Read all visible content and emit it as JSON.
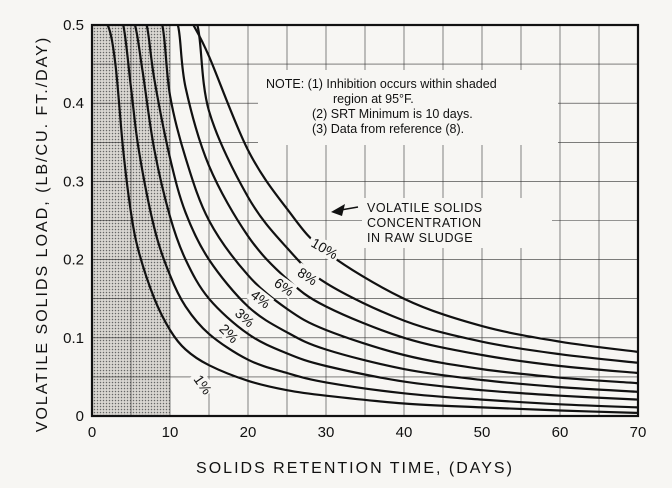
{
  "chart_data": {
    "type": "line",
    "title": "",
    "xlabel": "SOLIDS RETENTION TIME, (DAYS)",
    "ylabel": "VOLATILE SOLIDS LOAD, (LB/CU. FT./DAY)",
    "xlim": [
      0,
      70
    ],
    "ylim": [
      0,
      0.5
    ],
    "x_ticks": [
      "0",
      "10",
      "20",
      "30",
      "40",
      "50",
      "60",
      "70"
    ],
    "y_ticks": [
      "0",
      "0.1",
      "0.2",
      "0.3",
      "0.4",
      "0.5"
    ],
    "grid": true,
    "shaded_region": {
      "x_range": [
        0,
        10
      ]
    },
    "note": {
      "lines": [
        "NOTE:  (1) Inhibition occurs within shaded",
        "region at 95°F.",
        "(2) SRT Minimum is 10 days.",
        "(3) Data from reference (8)."
      ]
    },
    "callout": {
      "lines": [
        "VOLATILE SOLIDS",
        "CONCENTRATION",
        "IN RAW SLUDGE"
      ]
    },
    "series": [
      {
        "name": "",
        "label": "1%",
        "x": [
          0.5,
          2,
          3,
          4,
          5,
          6,
          8,
          10,
          12,
          15,
          20,
          25,
          30,
          40,
          50,
          60,
          70
        ],
        "y": [
          0.5,
          0.5,
          0.45,
          0.34,
          0.26,
          0.21,
          0.15,
          0.11,
          0.085,
          0.065,
          0.045,
          0.033,
          0.026,
          0.016,
          0.011,
          0.007,
          0.004
        ]
      },
      {
        "name": "",
        "label": "",
        "x": [
          3,
          4,
          5,
          6,
          8,
          10,
          12,
          15,
          20,
          25,
          30,
          40,
          50,
          60,
          70
        ],
        "y": [
          0.5,
          0.5,
          0.42,
          0.34,
          0.24,
          0.18,
          0.14,
          0.105,
          0.072,
          0.055,
          0.043,
          0.029,
          0.021,
          0.015,
          0.011
        ]
      },
      {
        "name": "",
        "label": "2%",
        "x": [
          4.5,
          5.5,
          6.5,
          8,
          10,
          12,
          15,
          20,
          25,
          30,
          40,
          50,
          60,
          70
        ],
        "y": [
          0.5,
          0.5,
          0.44,
          0.34,
          0.255,
          0.2,
          0.15,
          0.105,
          0.08,
          0.064,
          0.044,
          0.033,
          0.026,
          0.021
        ]
      },
      {
        "name": "",
        "label": "3%",
        "x": [
          6,
          7,
          8,
          10,
          12,
          15,
          20,
          25,
          30,
          40,
          50,
          60,
          70
        ],
        "y": [
          0.5,
          0.5,
          0.43,
          0.33,
          0.26,
          0.2,
          0.14,
          0.107,
          0.085,
          0.06,
          0.046,
          0.037,
          0.031
        ]
      },
      {
        "name": "",
        "label": "4%",
        "x": [
          7.5,
          9,
          10,
          12,
          15,
          20,
          25,
          30,
          40,
          50,
          60,
          70
        ],
        "y": [
          0.5,
          0.5,
          0.41,
          0.33,
          0.25,
          0.18,
          0.137,
          0.11,
          0.078,
          0.06,
          0.049,
          0.042
        ]
      },
      {
        "name": "",
        "label": "6%",
        "x": [
          9.5,
          11,
          12,
          15,
          20,
          25,
          30,
          40,
          50,
          60,
          70
        ],
        "y": [
          0.5,
          0.5,
          0.42,
          0.32,
          0.23,
          0.175,
          0.14,
          0.1,
          0.078,
          0.064,
          0.055
        ]
      },
      {
        "name": "",
        "label": "8%",
        "x": [
          11.5,
          13.5,
          15,
          20,
          25,
          30,
          40,
          50,
          60,
          70
        ],
        "y": [
          0.5,
          0.5,
          0.39,
          0.28,
          0.215,
          0.17,
          0.122,
          0.095,
          0.079,
          0.068
        ]
      },
      {
        "name": "",
        "label": "10%",
        "x": [
          13,
          15,
          20,
          25,
          30,
          40,
          50,
          60,
          70
        ],
        "y": [
          0.5,
          0.46,
          0.34,
          0.265,
          0.21,
          0.15,
          0.115,
          0.095,
          0.082
        ]
      }
    ]
  }
}
